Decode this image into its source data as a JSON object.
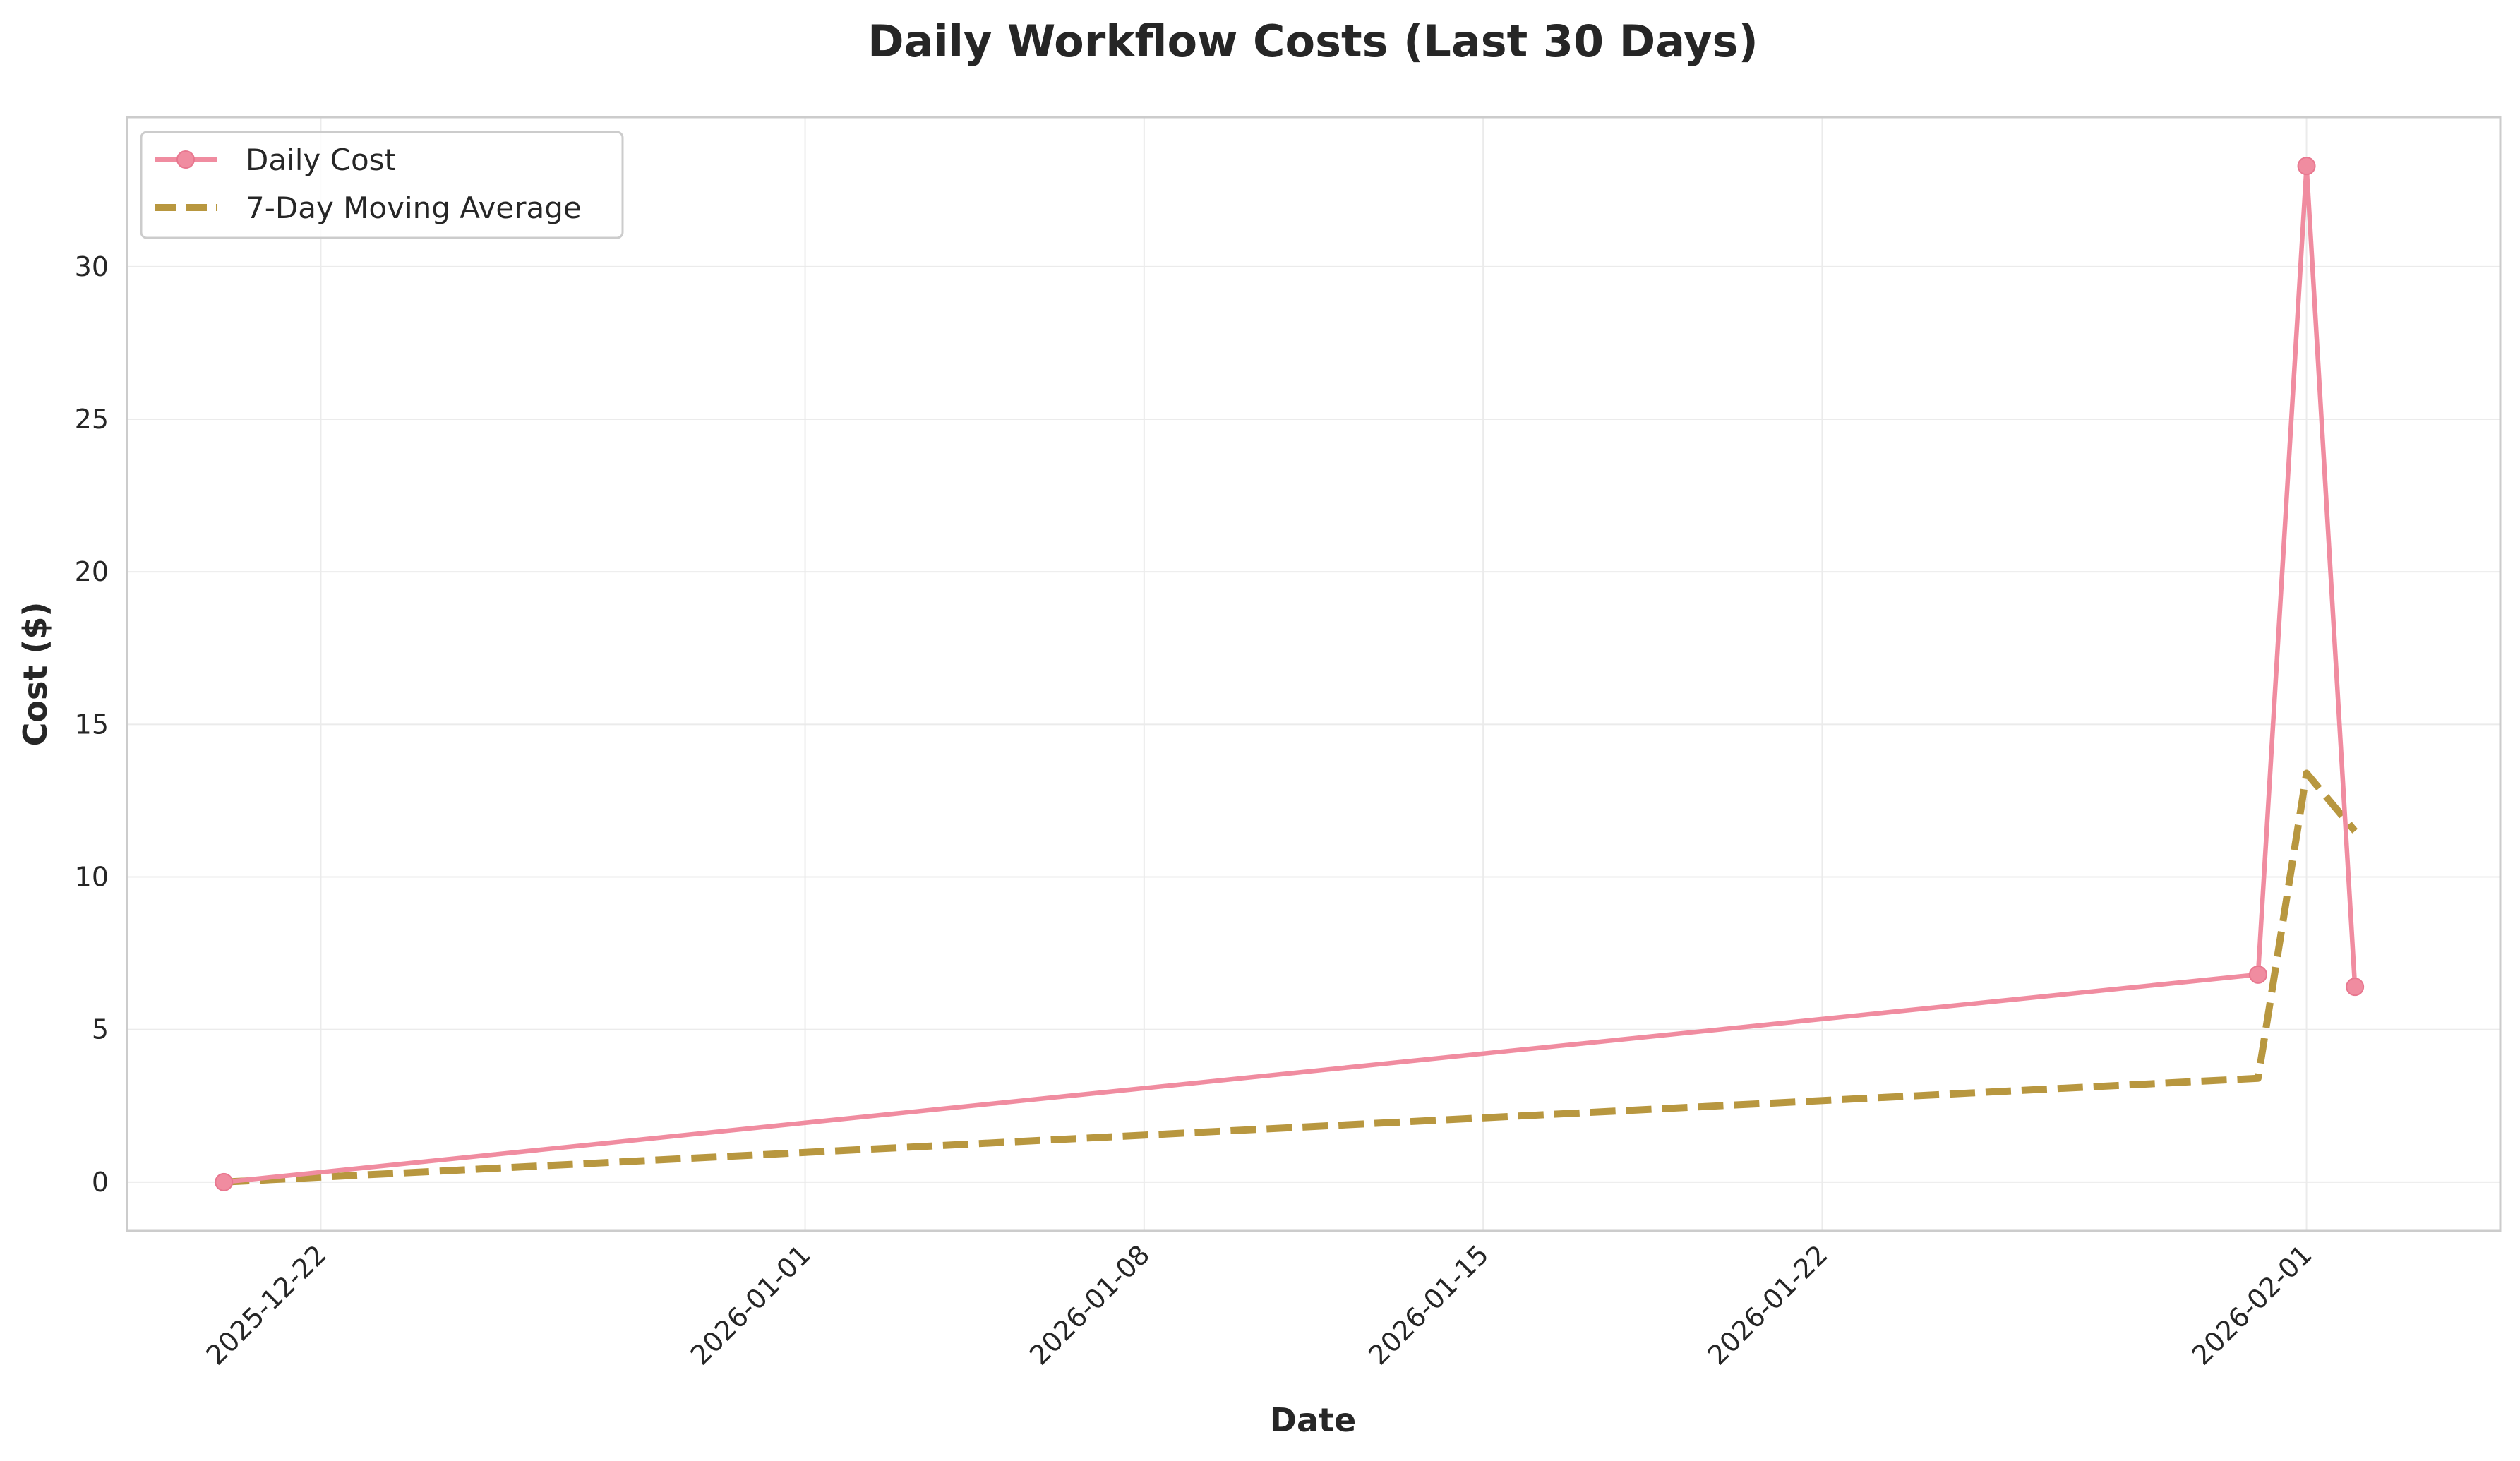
{
  "chart_data": {
    "type": "line",
    "title": "Daily Workflow Costs (Last 30 Days)",
    "xlabel": "Date",
    "ylabel": "Cost ($)",
    "xlim": [
      "2025-12-18",
      "2026-02-05"
    ],
    "ylim": [
      -1.6,
      34.9
    ],
    "x_ticks": [
      "2025-12-22",
      "2026-01-01",
      "2026-01-08",
      "2026-01-15",
      "2026-01-22",
      "2026-02-01"
    ],
    "y_ticks": [
      0,
      5,
      10,
      15,
      20,
      25,
      30
    ],
    "grid": true,
    "legend_position": "top-left",
    "series": [
      {
        "name": "Daily Cost",
        "color": "#f08ca0",
        "style": "solid",
        "marker": "circle",
        "x": [
          "2025-12-20",
          "2026-01-31",
          "2026-02-01",
          "2026-02-02"
        ],
        "values": [
          0.0,
          6.8,
          33.3,
          6.4
        ]
      },
      {
        "name": "7-Day Moving Average",
        "color": "#b8973f",
        "style": "dashed",
        "marker": "none",
        "x": [
          "2025-12-20",
          "2026-01-31",
          "2026-02-01",
          "2026-02-02"
        ],
        "values": [
          0.0,
          3.4,
          13.4,
          11.5
        ]
      }
    ]
  }
}
